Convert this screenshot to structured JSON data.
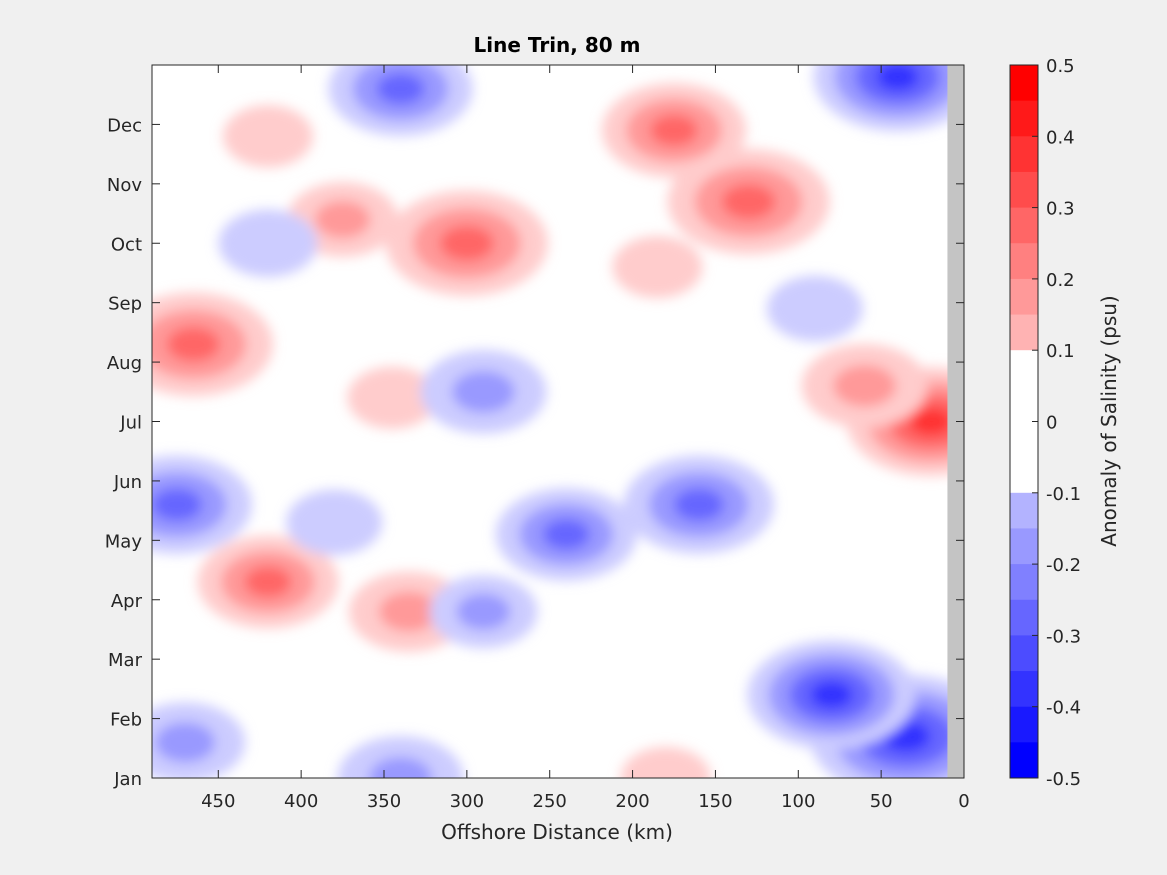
{
  "chart_data": {
    "type": "heatmap",
    "title": "Line Trin, 80 m",
    "xlabel": "Offshore Distance (km)",
    "ylabel": "",
    "colorbar_label": "Anomaly of Salinity (psu)",
    "x_direction": "reversed",
    "xlim": [
      490,
      0
    ],
    "xticks": [
      450,
      400,
      350,
      300,
      250,
      200,
      150,
      100,
      50,
      0
    ],
    "ylim": [
      1,
      13
    ],
    "yticks": [
      "Jan",
      "Feb",
      "Mar",
      "Apr",
      "May",
      "Jun",
      "Jul",
      "Aug",
      "Sep",
      "Oct",
      "Nov",
      "Dec"
    ],
    "clim": [
      -0.5,
      0.5
    ],
    "colorbar_ticks": [
      "0.5",
      "0.4",
      "0.3",
      "0.2",
      "0.1",
      "0",
      "-0.1",
      "-0.2",
      "-0.3",
      "-0.4",
      "-0.5"
    ],
    "colors": {
      "positive_max": "#ff0000",
      "negative_max": "#0000ff",
      "zero": "#ffffff",
      "no_data": "#c4c4c4",
      "background": "#f0f0f0"
    },
    "no_data_region_km": [
      0,
      10
    ],
    "anomaly_features": [
      {
        "x": 465,
        "y": 8.3,
        "value": 0.33
      },
      {
        "x": 300,
        "y": 10.0,
        "value": 0.34
      },
      {
        "x": 130,
        "y": 10.7,
        "value": 0.34
      },
      {
        "x": 175,
        "y": 11.9,
        "value": 0.28
      },
      {
        "x": 375,
        "y": 10.4,
        "value": 0.17
      },
      {
        "x": 420,
        "y": 11.8,
        "value": 0.1
      },
      {
        "x": 20,
        "y": 7.0,
        "value": 0.36
      },
      {
        "x": 60,
        "y": 7.6,
        "value": 0.22
      },
      {
        "x": 420,
        "y": 4.3,
        "value": 0.27
      },
      {
        "x": 335,
        "y": 3.8,
        "value": 0.2
      },
      {
        "x": 345,
        "y": 7.4,
        "value": 0.1
      },
      {
        "x": 185,
        "y": 9.6,
        "value": 0.1
      },
      {
        "x": 180,
        "y": 1.0,
        "value": 0.1
      },
      {
        "x": 340,
        "y": 12.6,
        "value": -0.28
      },
      {
        "x": 420,
        "y": 10.0,
        "value": -0.13
      },
      {
        "x": 290,
        "y": 7.5,
        "value": -0.22
      },
      {
        "x": 475,
        "y": 5.6,
        "value": -0.3
      },
      {
        "x": 240,
        "y": 5.1,
        "value": -0.27
      },
      {
        "x": 160,
        "y": 5.6,
        "value": -0.3
      },
      {
        "x": 35,
        "y": 1.7,
        "value": -0.44
      },
      {
        "x": 80,
        "y": 2.4,
        "value": -0.36
      },
      {
        "x": 40,
        "y": 12.8,
        "value": -0.36
      },
      {
        "x": 470,
        "y": 1.6,
        "value": -0.2
      },
      {
        "x": 340,
        "y": 1.0,
        "value": -0.22
      },
      {
        "x": 290,
        "y": 3.8,
        "value": -0.16
      },
      {
        "x": 90,
        "y": 8.9,
        "value": -0.12
      },
      {
        "x": 380,
        "y": 5.3,
        "value": -0.12
      }
    ]
  }
}
